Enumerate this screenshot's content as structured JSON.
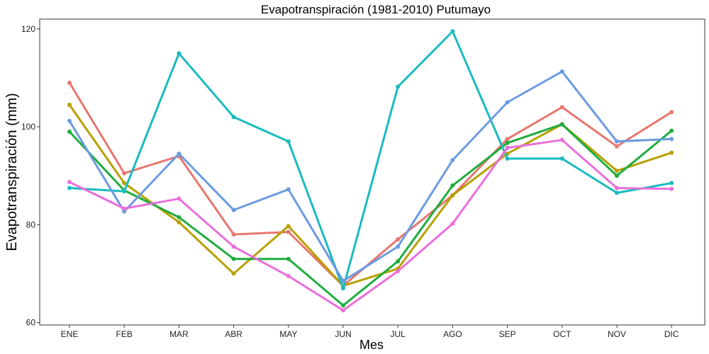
{
  "chart_data": {
    "type": "line",
    "title": "Evapotranspiración (1981-2010)  Putumayo",
    "xlabel": "Mes",
    "ylabel": "Evapotranspiración (mm)",
    "categories": [
      "ENE",
      "FEB",
      "MAR",
      "ABR",
      "MAY",
      "JUN",
      "JUL",
      "AGO",
      "SEP",
      "OCT",
      "NOV",
      "DIC"
    ],
    "ylim": [
      59.5,
      122
    ],
    "yticks": [
      60,
      80,
      100,
      120
    ],
    "grid": false,
    "legend": "none",
    "series": [
      {
        "color": "#E7776F",
        "values": [
          109,
          90.5,
          94,
          78,
          78.5,
          67.5,
          77,
          86,
          97.5,
          104,
          96,
          103
        ]
      },
      {
        "color": "#B8A000",
        "values": [
          104.5,
          88.5,
          80.5,
          70,
          79.7,
          67.5,
          71,
          86,
          94.5,
          100.5,
          91,
          94.7
        ]
      },
      {
        "color": "#1EAD3F",
        "values": [
          99,
          87,
          81.5,
          73,
          73,
          63.5,
          72.5,
          88,
          96.7,
          100.5,
          90,
          99.2
        ]
      },
      {
        "color": "#1ABBC0",
        "values": [
          87.5,
          86.8,
          115,
          102,
          97,
          67,
          108.2,
          119.5,
          93.5,
          93.5,
          86.5,
          88.5
        ]
      },
      {
        "color": "#6C9BE0",
        "values": [
          101.2,
          82.7,
          94.5,
          83,
          87.2,
          68.5,
          75.5,
          93.2,
          105,
          111.3,
          97,
          97.5
        ]
      },
      {
        "color": "#EA6FDB",
        "values": [
          88.7,
          83.3,
          85.3,
          75.5,
          69.5,
          62.5,
          70.5,
          80.2,
          95.7,
          97.3,
          87.5,
          87.3
        ]
      }
    ]
  }
}
